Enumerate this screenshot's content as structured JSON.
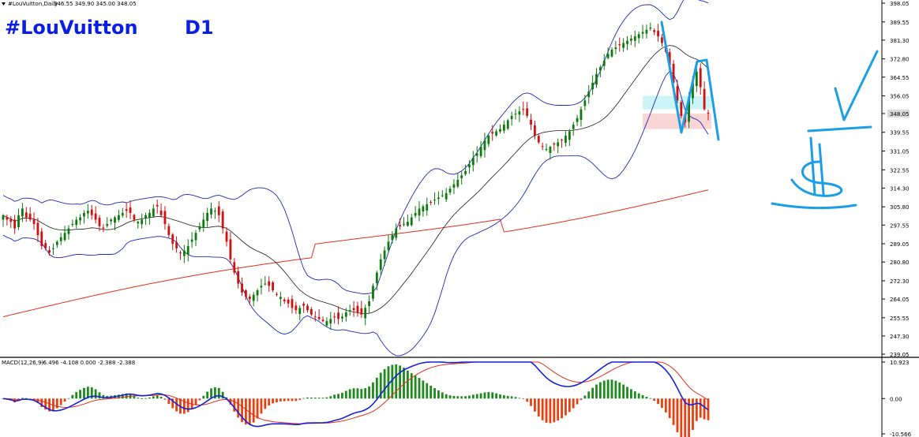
{
  "colors": {
    "title": "#0a1ee6",
    "up_candle": "#0c7a0c",
    "down_candle": "#d01010",
    "band": "#1e2ab8",
    "middle_band": "#1a1a1a",
    "ma200": "#e0301a",
    "macd_line": "#1523d6",
    "signal_line": "#e0301a",
    "hist_pos": "#1e8a1e",
    "hist_neg": "#e84010",
    "drawing": "#1c9ee6",
    "price_label_bg": "#d8d8d8"
  },
  "header": {
    "menu_icon": "triangle-down-icon",
    "symbol": "#LouVuitton,Daily",
    "ohlc": "346.55 349.90 345.00 348.05"
  },
  "title": {
    "symbol": "#LouVuitton",
    "timeframe": "D1"
  },
  "current_price": "348.05",
  "macd_label": {
    "name": "MACD(12,26,9)",
    "values": "-6.496 -4.108 0.000 -2.388 -2.388"
  },
  "chart_data": [
    {
      "type": "candlestick",
      "panel": "price",
      "symbol": "#LouVuitton",
      "timeframe": "D1",
      "ylim": [
        239.05,
        398.05
      ],
      "y_ticks": [
        "398.05",
        "389.55",
        "381.30",
        "372.80",
        "364.55",
        "356.05",
        "348.05",
        "339.55",
        "331.05",
        "322.55",
        "314.30",
        "305.80",
        "297.55",
        "289.05",
        "280.80",
        "272.30",
        "264.05",
        "255.55",
        "247.30",
        "239.05"
      ],
      "last_price": 348.05,
      "series": [
        {
          "name": "price",
          "values": [
            302,
            300,
            299,
            296,
            302,
            305,
            301,
            300,
            298,
            293,
            288,
            287,
            285,
            287,
            290,
            292,
            294,
            296,
            298,
            300,
            301,
            303,
            304,
            302,
            300,
            297,
            296,
            298,
            300,
            301,
            302,
            303,
            304,
            303,
            300,
            299,
            300,
            302,
            303,
            305,
            306,
            302,
            298,
            293,
            289,
            287,
            285,
            286,
            288,
            291,
            294,
            297,
            300,
            303,
            305,
            304,
            302,
            296,
            290,
            282,
            276,
            271,
            267,
            265,
            264,
            266,
            268,
            270,
            271,
            270,
            268,
            266,
            265,
            263,
            262,
            260,
            259,
            260,
            261,
            259,
            257,
            256,
            255,
            254,
            254,
            255,
            256,
            255,
            256,
            258,
            259,
            259,
            258,
            257,
            260,
            263,
            270,
            276,
            282,
            286,
            290,
            293,
            296,
            297,
            298,
            299,
            301,
            303,
            305,
            306,
            307,
            308,
            309,
            310,
            311,
            312,
            314,
            316,
            318,
            320,
            322,
            325,
            328,
            330,
            333,
            336,
            338,
            339,
            340,
            341,
            343,
            345,
            347,
            348,
            349,
            350,
            347,
            343,
            338,
            335,
            333,
            332,
            333,
            334,
            335,
            336,
            338,
            340,
            343,
            346,
            350,
            354,
            358,
            362,
            366,
            369,
            372,
            375,
            377,
            378,
            379,
            380,
            381,
            382,
            383,
            384,
            385,
            386,
            387,
            385,
            383,
            380,
            376,
            370,
            362,
            354,
            347,
            344,
            355,
            362,
            367,
            360,
            350,
            348
          ]
        }
      ],
      "overlays": [
        "bollinger_upper",
        "bollinger_middle",
        "bollinger_lower",
        "moving_average_long"
      ]
    },
    {
      "type": "macd",
      "panel": "indicator",
      "name": "MACD(12,26,9)",
      "ylim": [
        -10.566,
        10.923
      ],
      "y_ticks": [
        "10.923",
        "0.00",
        "-10.566"
      ],
      "macd": -6.496,
      "signal": -4.108
    }
  ],
  "annotations": {
    "price_zone_upper": [
      350,
      356
    ],
    "price_zone_lower": [
      341,
      348
    ],
    "hand_drawn": [
      "M-pattern-stroke",
      "check-mark",
      "dollar-sign",
      "underline"
    ]
  }
}
